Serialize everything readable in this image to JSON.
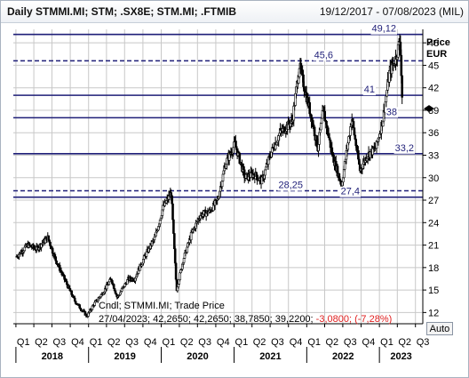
{
  "header": {
    "title": "Daily STMMI.MI; STM; .SX8E; STM.MI; .FTMIB",
    "date_range": "19/12/2017 - 07/08/2023 (MIL)"
  },
  "axis": {
    "title_line1": "Price",
    "title_line2": "EUR",
    "ticks": [
      "12",
      "15",
      "18",
      "21",
      "24",
      "27",
      "30",
      "33",
      "36",
      "39",
      "42",
      "45",
      "48"
    ],
    "quarter_labels": [
      "Q1",
      "Q2",
      "Q3",
      "Q4",
      "Q1",
      "Q2",
      "Q3",
      "Q4",
      "Q1",
      "Q2",
      "Q3",
      "Q4",
      "Q1",
      "Q2",
      "Q3",
      "Q4",
      "Q1",
      "Q2",
      "Q3",
      "Q4",
      "Q1",
      "Q2",
      "Q3"
    ],
    "year_labels": [
      "2018",
      "2019",
      "2020",
      "2021",
      "2022",
      "2023"
    ]
  },
  "legend": {
    "series_label": "Cndl; STMMI.MI; Trade Price",
    "ohlc_text": "27/04/2023; 42,2650; 42,2650; 38,7850; 39,2200;",
    "change_text": "-3,0800; (-7,28%)"
  },
  "controls": {
    "auto_label": "Auto"
  },
  "colors": {
    "line_color": "#1f1f78",
    "candle_color": "#000000",
    "grid_color": "#c8c8c8",
    "negative_text": "#e02020"
  },
  "chart_data": {
    "type": "candlestick",
    "title": "Daily STMMI.MI; STM; .SX8E; STM.MI; .FTMIB",
    "ylabel": "Price EUR",
    "ylim": [
      10.5,
      49.8
    ],
    "x_range": [
      "2017-12-19",
      "2023-08-07"
    ],
    "grid": true,
    "horizontal_lines": [
      {
        "label": "49,12",
        "value": 49.12,
        "style": "solid"
      },
      {
        "label": "45,6",
        "value": 45.6,
        "style": "dashed"
      },
      {
        "label": "41",
        "value": 41.0,
        "style": "solid"
      },
      {
        "label": "38",
        "value": 38.0,
        "style": "solid"
      },
      {
        "label": "33,2",
        "value": 33.2,
        "style": "solid"
      },
      {
        "label": "28,25",
        "value": 28.25,
        "style": "dashed"
      },
      {
        "label": "27,4",
        "value": 27.4,
        "style": "solid"
      }
    ],
    "last_price_marker": 39.22,
    "price_path": [
      {
        "date": "2018-01-05",
        "value": 19.5
      },
      {
        "date": "2018-03-01",
        "value": 21.0
      },
      {
        "date": "2018-04-15",
        "value": 20.5
      },
      {
        "date": "2018-06-10",
        "value": 22.0
      },
      {
        "date": "2018-07-20",
        "value": 19.0
      },
      {
        "date": "2018-09-01",
        "value": 16.5
      },
      {
        "date": "2018-10-25",
        "value": 13.5
      },
      {
        "date": "2018-12-24",
        "value": 11.5
      },
      {
        "date": "2019-01-25",
        "value": 13.0
      },
      {
        "date": "2019-03-10",
        "value": 14.5
      },
      {
        "date": "2019-04-25",
        "value": 16.5
      },
      {
        "date": "2019-05-25",
        "value": 14.0
      },
      {
        "date": "2019-07-20",
        "value": 16.5
      },
      {
        "date": "2019-08-20",
        "value": 16.5
      },
      {
        "date": "2019-10-10",
        "value": 19.5
      },
      {
        "date": "2019-12-01",
        "value": 22.0
      },
      {
        "date": "2020-01-10",
        "value": 26.0
      },
      {
        "date": "2020-02-20",
        "value": 28.0
      },
      {
        "date": "2020-03-18",
        "value": 15.0
      },
      {
        "date": "2020-04-20",
        "value": 19.0
      },
      {
        "date": "2020-06-01",
        "value": 22.5
      },
      {
        "date": "2020-07-15",
        "value": 25.0
      },
      {
        "date": "2020-09-01",
        "value": 25.5
      },
      {
        "date": "2020-10-10",
        "value": 27.0
      },
      {
        "date": "2020-11-20",
        "value": 32.0
      },
      {
        "date": "2021-01-05",
        "value": 34.5
      },
      {
        "date": "2021-02-25",
        "value": 30.0
      },
      {
        "date": "2021-04-10",
        "value": 30.5
      },
      {
        "date": "2021-05-20",
        "value": 29.5
      },
      {
        "date": "2021-07-01",
        "value": 33.0
      },
      {
        "date": "2021-08-20",
        "value": 36.0
      },
      {
        "date": "2021-10-20",
        "value": 37.5
      },
      {
        "date": "2021-11-25",
        "value": 45.0
      },
      {
        "date": "2021-12-20",
        "value": 42.0
      },
      {
        "date": "2022-01-25",
        "value": 38.0
      },
      {
        "date": "2022-02-25",
        "value": 34.0
      },
      {
        "date": "2022-03-25",
        "value": 39.0
      },
      {
        "date": "2022-05-10",
        "value": 33.0
      },
      {
        "date": "2022-06-25",
        "value": 29.0
      },
      {
        "date": "2022-08-15",
        "value": 38.0
      },
      {
        "date": "2022-09-25",
        "value": 31.0
      },
      {
        "date": "2022-11-01",
        "value": 33.0
      },
      {
        "date": "2022-12-15",
        "value": 34.0
      },
      {
        "date": "2023-01-20",
        "value": 38.0
      },
      {
        "date": "2023-02-20",
        "value": 44.0
      },
      {
        "date": "2023-03-25",
        "value": 46.0
      },
      {
        "date": "2023-04-15",
        "value": 48.5
      },
      {
        "date": "2023-04-27",
        "value": 39.22
      }
    ]
  }
}
